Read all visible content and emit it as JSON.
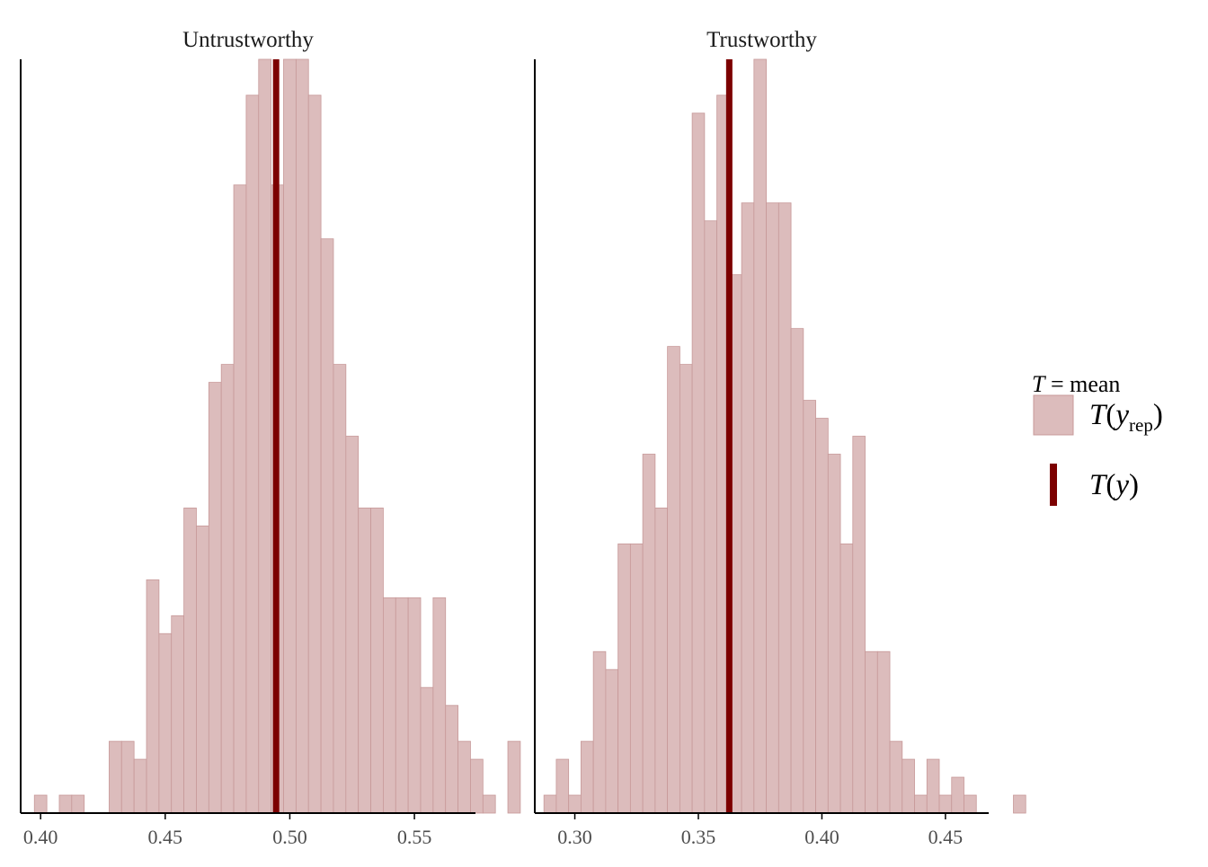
{
  "chart_data": {
    "type": "bar",
    "legend": {
      "title_T": "T",
      "title_rest": " = mean",
      "rep_label_T": "T",
      "rep_label_y": "y",
      "rep_label_sub": "rep",
      "obs_label_T": "T",
      "obs_label_y": "y",
      "placement": "right"
    },
    "colors": {
      "bar_fill": "#dcbcbc",
      "bar_stroke": "#c79999",
      "observed_line": "#7c0000",
      "axis": "#000000"
    },
    "panels": [
      {
        "title": "Untrustworthy",
        "xlim": [
          0.392,
          0.5745
        ],
        "ylim": [
          0,
          42
        ],
        "xticks": [
          0.4,
          0.45,
          0.5,
          0.55
        ],
        "xtick_labels": [
          "0.40",
          "0.45",
          "0.50",
          "0.55"
        ],
        "bin_start": 0.3975,
        "bin_width": 0.005,
        "counts": [
          1,
          0,
          1,
          1,
          0,
          0,
          4,
          4,
          3,
          13,
          10,
          11,
          17,
          16,
          24,
          25,
          35,
          40,
          42,
          35,
          42,
          42,
          40,
          32,
          25,
          21,
          17,
          17,
          12,
          12,
          12,
          7,
          12,
          6,
          4,
          3,
          1,
          0,
          4
        ],
        "observed_mean": 0.4945
      },
      {
        "title": "Trustworthy",
        "xlim": [
          0.2838,
          0.4675
        ],
        "ylim": [
          0,
          42
        ],
        "xticks": [
          0.3,
          0.35,
          0.4,
          0.45
        ],
        "xtick_labels": [
          "0.30",
          "0.35",
          "0.40",
          "0.45"
        ],
        "bin_start": 0.2875,
        "bin_width": 0.005,
        "counts": [
          1,
          3,
          1,
          4,
          9,
          8,
          15,
          15,
          20,
          17,
          26,
          25,
          39,
          33,
          40,
          30,
          34,
          42,
          34,
          34,
          27,
          23,
          22,
          20,
          15,
          21,
          9,
          9,
          4,
          3,
          1,
          3,
          1,
          2,
          1,
          0,
          0,
          0,
          1
        ],
        "observed_mean": 0.3625
      }
    ]
  }
}
